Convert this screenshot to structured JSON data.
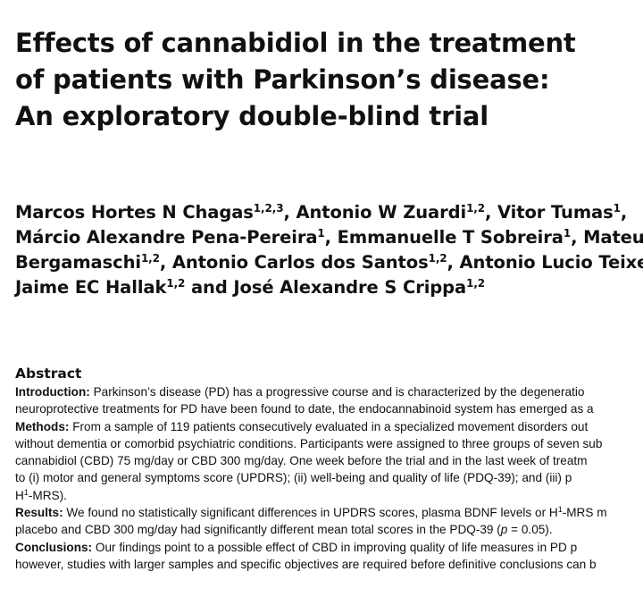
{
  "title": {
    "lines": [
      "Effects of cannabidiol in the treatment",
      "of patients with Parkinson’s disease:",
      "An exploratory double-blind trial"
    ]
  },
  "authors": [
    {
      "name": "Marcos Hortes N Chagas",
      "aff": "1,2,3",
      "sep": ", "
    },
    {
      "name": "Antonio W Zuardi",
      "aff": "1,2",
      "sep": ", "
    },
    {
      "name": "Vitor Tumas",
      "aff": "1",
      "sep": ","
    },
    {
      "name": "Márcio Alexandre Pena-Pereira",
      "aff": "1",
      "sep": ", "
    },
    {
      "name": "Emmanuelle T Sobreira",
      "aff": "1",
      "sep": ", "
    },
    {
      "name": "Mateus M",
      "aff": "",
      "sep": ""
    },
    {
      "name": "Bergamaschi",
      "aff": "1,2",
      "sep": ", "
    },
    {
      "name": "Antonio Carlos dos Santos",
      "aff": "1,2",
      "sep": ", "
    },
    {
      "name": "Antonio Lucio Teixeira",
      "aff": "",
      "sep": ""
    },
    {
      "name": "Jaime EC Hallak",
      "aff": "1,2",
      "sep": " and "
    },
    {
      "name": "José Alexandre S Crippa",
      "aff": "1,2",
      "sep": ""
    }
  ],
  "abstract": {
    "heading": "Abstract",
    "intro": {
      "label": "Introduction:",
      "line1": "Parkinson’s disease (PD) has a progressive course and is characterized by the degeneratio",
      "line2": "neuroprotective treatments for PD have been found to date, the endocannabinoid system has emerged as a"
    },
    "methods": {
      "label": "Methods:",
      "line1": "From a sample of 119 patients consecutively evaluated in a specialized movement disorders out",
      "line2": "without dementia or comorbid psychiatric conditions. Participants were assigned to three groups of seven sub",
      "line3": "cannabidiol (CBD) 75 mg/day or CBD 300 mg/day. One week before the trial and in the last week of treatm",
      "line4": "to (i) motor and general symptoms score (UPDRS); (ii) well-being and quality of life (PDQ-39); and (iii) p",
      "line5_pre": "H",
      "line5_sup": "1",
      "line5_post": "-MRS)."
    },
    "results": {
      "label": "Results:",
      "line1_pre": "We found no statistically significant differences in UPDRS scores, plasma BDNF levels or H",
      "line1_sup": "1",
      "line1_post": "-MRS m",
      "line2_pre": "placebo and CBD 300 mg/day had significantly different mean total scores in the PDQ-39 (",
      "line2_p": "p",
      "line2_post": " = 0.05)."
    },
    "conclusions": {
      "label": "Conclusions:",
      "line1": "Our findings point to a possible effect of CBD in improving quality of life measures in PD p",
      "line2": "however, studies with larger samples and specific objectives are required before definitive conclusions can b"
    }
  }
}
